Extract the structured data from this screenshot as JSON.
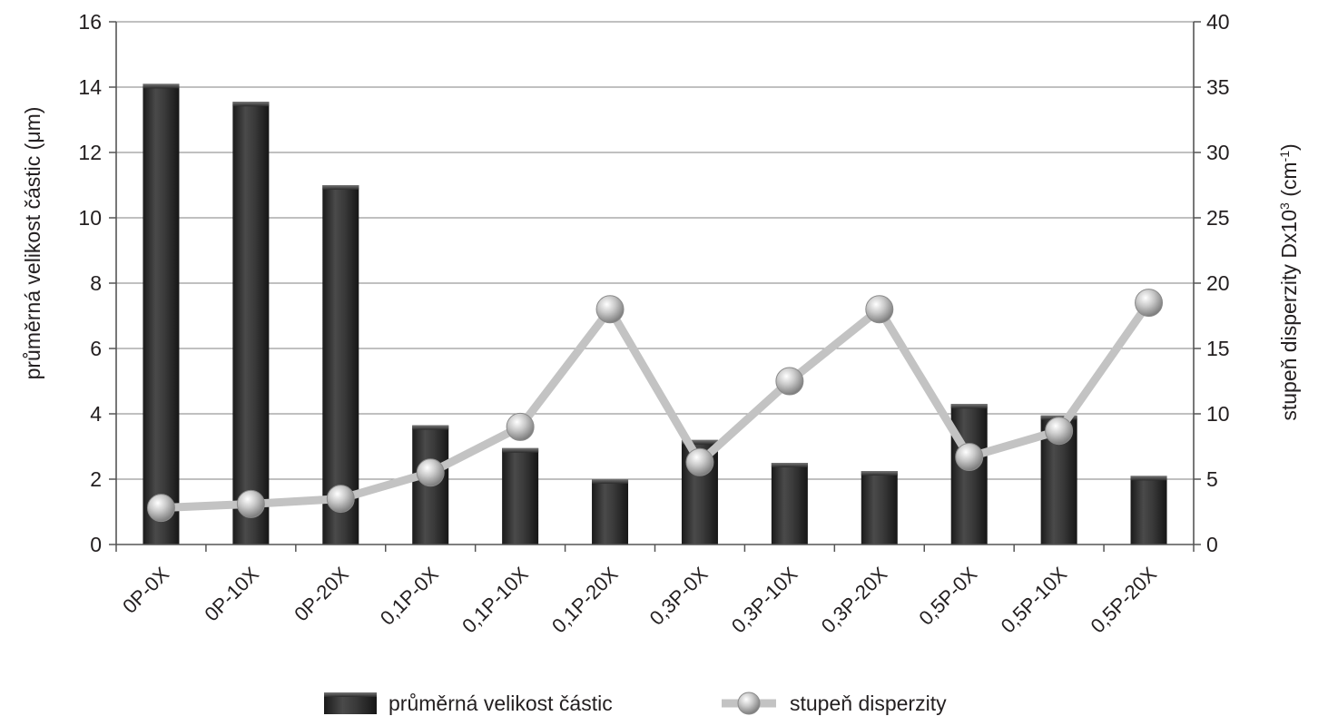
{
  "chart_data": {
    "type": "bar",
    "categories": [
      "0P-0X",
      "0P-10X",
      "0P-20X",
      "0,1P-0X",
      "0,1P-10X",
      "0,1P-20X",
      "0,3P-0X",
      "0,3P-10X",
      "0,3P-20X",
      "0,5P-0X",
      "0,5P-10X",
      "0,5P-20X"
    ],
    "series": [
      {
        "name": "průměrná velikost částic",
        "type": "bar",
        "axis": "left",
        "values": [
          14.1,
          13.55,
          11.0,
          3.65,
          2.95,
          2.0,
          3.2,
          2.5,
          2.25,
          4.3,
          3.95,
          2.1
        ]
      },
      {
        "name": "stupeň disperzity",
        "type": "line",
        "axis": "right",
        "values": [
          2.8,
          3.1,
          3.5,
          5.5,
          9.0,
          18.0,
          6.3,
          12.5,
          18.0,
          6.7,
          8.7,
          18.5
        ]
      }
    ],
    "ylabel": "průměrná velikost částic (μm)",
    "y2label": "stupeň disperzity Dx10",
    "y2label_sup": "3",
    "y2label_unit_open": " (cm",
    "y2label_unit_sup": "-1",
    "y2label_unit_close": ")",
    "ylim": [
      0,
      16
    ],
    "y2lim": [
      0,
      40
    ],
    "yticks": [
      "0",
      "2",
      "4",
      "6",
      "8",
      "10",
      "12",
      "14",
      "16"
    ],
    "y2ticks": [
      "0",
      "5",
      "10",
      "15",
      "20",
      "25",
      "30",
      "35",
      "40"
    ],
    "grid": true,
    "legend": "bottom",
    "colors": {
      "bar": "#2b2b2b",
      "line": "#c3c3c3",
      "marker": "#b0b0b0",
      "grid": "#9a9a9a",
      "axis": "#555555"
    }
  }
}
